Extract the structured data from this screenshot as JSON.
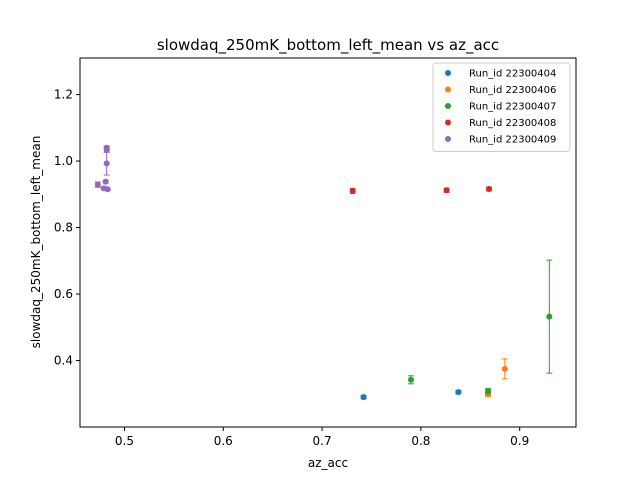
{
  "chart_data": {
    "type": "scatter",
    "title": "slowdaq_250mK_bottom_left_mean vs az_acc",
    "xlabel": "az_acc",
    "ylabel": "slowdaq_250mK_bottom_left_mean",
    "xlim": [
      0.455,
      0.957
    ],
    "ylim": [
      0.2,
      1.31
    ],
    "xticks": [
      0.5,
      0.6,
      0.7,
      0.8,
      0.9
    ],
    "xtick_labels": [
      "0.5",
      "0.6",
      "0.7",
      "0.8",
      "0.9"
    ],
    "yticks": [
      0.4,
      0.6,
      0.8,
      1.0,
      1.2
    ],
    "ytick_labels": [
      "0.4",
      "0.6",
      "0.8",
      "1.0",
      "1.2"
    ],
    "grid": false,
    "legend_position": "top-right",
    "series": [
      {
        "name": "Run_id 22300404",
        "color": "#1f77b4",
        "points": [
          {
            "x": 0.742,
            "y": 0.29,
            "err": 0.005
          },
          {
            "x": 0.838,
            "y": 0.305,
            "err": 0.005
          },
          {
            "x": 0.868,
            "y": 0.301,
            "err": 0.005
          }
        ]
      },
      {
        "name": "Run_id 22300406",
        "color": "#ff7f0e",
        "points": [
          {
            "x": 0.868,
            "y": 0.3,
            "err": 0.008
          },
          {
            "x": 0.885,
            "y": 0.375,
            "err": 0.03
          }
        ]
      },
      {
        "name": "Run_id 22300407",
        "color": "#2ca02c",
        "points": [
          {
            "x": 0.79,
            "y": 0.342,
            "err": 0.012
          },
          {
            "x": 0.868,
            "y": 0.308,
            "err": 0.008
          },
          {
            "x": 0.93,
            "y": 0.532,
            "err": 0.17
          }
        ]
      },
      {
        "name": "Run_id 22300408",
        "color": "#d62728",
        "points": [
          {
            "x": 0.731,
            "y": 0.91,
            "err": 0.007
          },
          {
            "x": 0.826,
            "y": 0.912,
            "err": 0.006
          },
          {
            "x": 0.869,
            "y": 0.916,
            "err": 0.006
          }
        ]
      },
      {
        "name": "Run_id 22300409",
        "color": "#9467bd",
        "points": [
          {
            "x": 0.473,
            "y": 0.929,
            "err": 0.008
          },
          {
            "x": 0.479,
            "y": 0.918,
            "err": 0.004
          },
          {
            "x": 0.481,
            "y": 0.938,
            "err": 0.004
          },
          {
            "x": 0.483,
            "y": 0.915,
            "err": 0.004
          },
          {
            "x": 0.482,
            "y": 0.993,
            "err": 0.035
          },
          {
            "x": 0.482,
            "y": 1.035,
            "err": 0.009
          },
          {
            "x": 0.482,
            "y": 1.04,
            "err": 0.005
          }
        ]
      }
    ]
  }
}
